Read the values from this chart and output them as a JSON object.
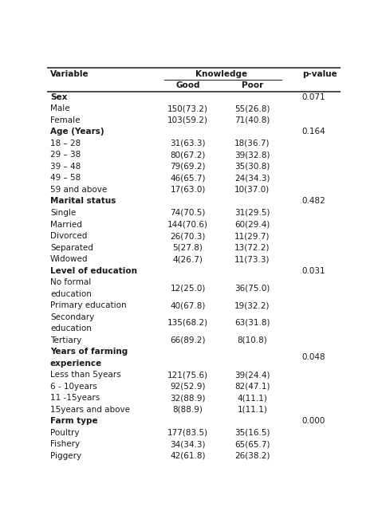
{
  "rows": [
    {
      "label": "Sex",
      "good": "",
      "poor": "",
      "pvalue": "0.071",
      "bold": true,
      "lines": 1
    },
    {
      "label": "Male",
      "good": "150(73.2)",
      "poor": "55(26.8)",
      "pvalue": "",
      "bold": false,
      "lines": 1
    },
    {
      "label": "Female",
      "good": "103(59.2)",
      "poor": "71(40.8)",
      "pvalue": "",
      "bold": false,
      "lines": 1
    },
    {
      "label": "Age (Years)",
      "good": "",
      "poor": "",
      "pvalue": "0.164",
      "bold": true,
      "lines": 1
    },
    {
      "label": "18 – 28",
      "good": "31(63.3)",
      "poor": "18(36.7)",
      "pvalue": "",
      "bold": false,
      "lines": 1
    },
    {
      "label": "29 – 38",
      "good": "80(67.2)",
      "poor": "39(32.8)",
      "pvalue": "",
      "bold": false,
      "lines": 1
    },
    {
      "label": "39 – 48",
      "good": "79(69.2)",
      "poor": "35(30.8)",
      "pvalue": "",
      "bold": false,
      "lines": 1
    },
    {
      "label": "49 – 58",
      "good": "46(65.7)",
      "poor": "24(34.3)",
      "pvalue": "",
      "bold": false,
      "lines": 1
    },
    {
      "label": "59 and above",
      "good": "17(63.0)",
      "poor": "10(37.0)",
      "pvalue": "",
      "bold": false,
      "lines": 1
    },
    {
      "label": "Marital status",
      "good": "",
      "poor": "",
      "pvalue": "0.482",
      "bold": true,
      "lines": 1
    },
    {
      "label": "Single",
      "good": "74(70.5)",
      "poor": "31(29.5)",
      "pvalue": "",
      "bold": false,
      "lines": 1
    },
    {
      "label": "Married",
      "good": "144(70.6)",
      "poor": "60(29.4)",
      "pvalue": "",
      "bold": false,
      "lines": 1
    },
    {
      "label": "Divorced",
      "good": "26(70.3)",
      "poor": "11(29.7)",
      "pvalue": "",
      "bold": false,
      "lines": 1
    },
    {
      "label": "Separated",
      "good": "5(27.8)",
      "poor": "13(72.2)",
      "pvalue": "",
      "bold": false,
      "lines": 1
    },
    {
      "label": "Widowed",
      "good": "4(26.7)",
      "poor": "11(73.3)",
      "pvalue": "",
      "bold": false,
      "lines": 1
    },
    {
      "label": "Level of education",
      "good": "",
      "poor": "",
      "pvalue": "0.031",
      "bold": true,
      "lines": 1
    },
    {
      "label": "No formal\neducation",
      "good": "12(25.0)",
      "poor": "36(75.0)",
      "pvalue": "",
      "bold": false,
      "lines": 2
    },
    {
      "label": "Primary education",
      "good": "40(67.8)",
      "poor": "19(32.2)",
      "pvalue": "",
      "bold": false,
      "lines": 1
    },
    {
      "label": "Secondary\neducation",
      "good": "135(68.2)",
      "poor": "63(31.8)",
      "pvalue": "",
      "bold": false,
      "lines": 2
    },
    {
      "label": "Tertiary",
      "good": "66(89.2)",
      "poor": "8(10.8)",
      "pvalue": "",
      "bold": false,
      "lines": 1
    },
    {
      "label": "Years of farming\nexperience",
      "good": "",
      "poor": "",
      "pvalue": "0.048",
      "bold": true,
      "lines": 2
    },
    {
      "label": "Less than 5years",
      "good": "121(75.6)",
      "poor": "39(24.4)",
      "pvalue": "",
      "bold": false,
      "lines": 1
    },
    {
      "label": "6 - 10years",
      "good": "92(52.9)",
      "poor": "82(47.1)",
      "pvalue": "",
      "bold": false,
      "lines": 1
    },
    {
      "label": "11 -15years",
      "good": "32(88.9)",
      "poor": "4(11.1)",
      "pvalue": "",
      "bold": false,
      "lines": 1
    },
    {
      "label": "15years and above",
      "good": "8(88.9)",
      "poor": "1(11.1)",
      "pvalue": "",
      "bold": false,
      "lines": 1
    },
    {
      "label": "Farm type",
      "good": "",
      "poor": "",
      "pvalue": "0.000",
      "bold": true,
      "lines": 1
    },
    {
      "label": "Poultry",
      "good": "177(83.5)",
      "poor": "35(16.5)",
      "pvalue": "",
      "bold": false,
      "lines": 1
    },
    {
      "label": "Fishery",
      "good": "34(34.3)",
      "poor": "65(65.7)",
      "pvalue": "",
      "bold": false,
      "lines": 1
    },
    {
      "label": "Piggery",
      "good": "42(61.8)",
      "poor": "26(38.2)",
      "pvalue": "",
      "bold": false,
      "lines": 1
    }
  ],
  "bg_color": "#ffffff",
  "text_color": "#1a1a1a",
  "line_color": "#1a1a1a",
  "font_size": 7.5,
  "fig_width": 4.74,
  "fig_height": 6.56,
  "col_var": 0.01,
  "col_good": 0.42,
  "col_poor": 0.63,
  "col_pval": 0.87
}
